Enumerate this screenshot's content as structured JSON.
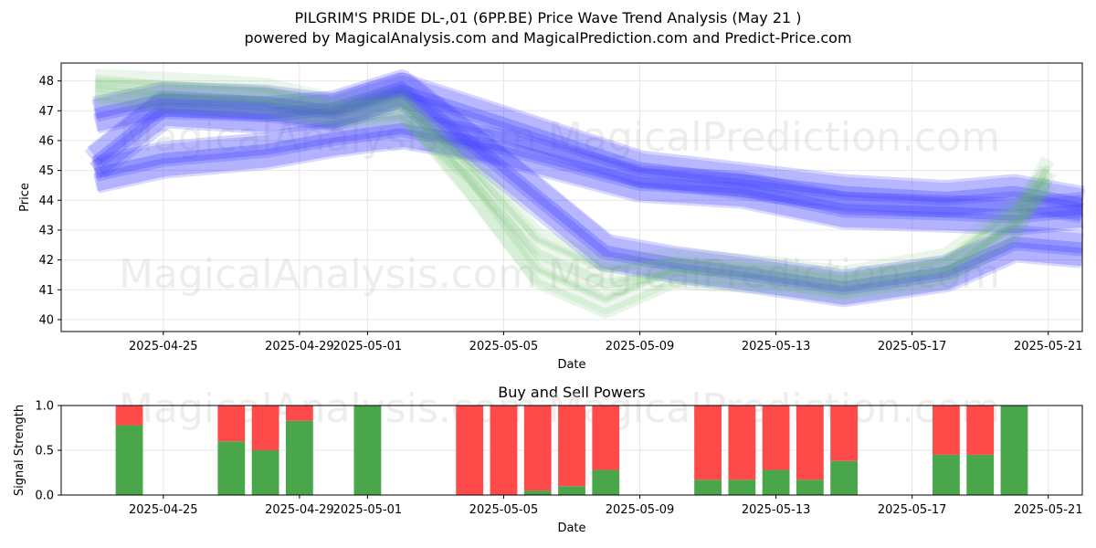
{
  "title_line1": "PILGRIM'S PRIDE  DL-,01 (6PP.BE) Price Wave Trend Analysis (May 21 )",
  "title_line2": "powered by MagicalAnalysis.com and MagicalPrediction.com and Predict-Price.com",
  "watermarks": [
    "MagicalAnalysis.com",
    "MagicalPrediction.com"
  ],
  "colors": {
    "buy": "#4aa64a",
    "sell": "#ff4a4a",
    "blue_band": "#4040ff",
    "green_band": "#5cb85c"
  },
  "chart_data": [
    {
      "type": "area",
      "xlabel": "Date",
      "ylabel": "Price",
      "x_ticks": [
        "2025-04-25",
        "2025-04-29",
        "2025-05-01",
        "2025-05-05",
        "2025-05-09",
        "2025-05-13",
        "2025-05-17",
        "2025-05-21"
      ],
      "y_ticks": [
        40,
        41,
        42,
        43,
        44,
        45,
        46,
        47,
        48
      ],
      "ylim": [
        39.6,
        48.6
      ],
      "xlim": [
        "2025-04-22",
        "2025-05-22"
      ],
      "grid": true,
      "series": [
        {
          "color": "blue",
          "x": [
            "2025-04-23",
            "2025-04-25",
            "2025-04-28",
            "2025-04-30",
            "2025-05-02",
            "2025-05-05",
            "2025-05-09",
            "2025-05-12",
            "2025-05-15",
            "2025-05-18",
            "2025-05-20",
            "2025-05-22"
          ],
          "values": [
            44.8,
            45.3,
            45.6,
            46.0,
            46.3,
            45.7,
            44.5,
            44.3,
            43.6,
            43.5,
            43.4,
            43.6
          ]
        },
        {
          "color": "blue",
          "x": [
            "2025-04-23",
            "2025-04-25",
            "2025-04-28",
            "2025-04-30",
            "2025-05-02",
            "2025-05-05",
            "2025-05-09",
            "2025-05-12",
            "2025-05-15",
            "2025-05-18",
            "2025-05-20",
            "2025-05-22"
          ],
          "values": [
            46.8,
            47.3,
            47.2,
            46.9,
            47.6,
            46.5,
            45.0,
            44.6,
            44.2,
            44.0,
            44.2,
            43.8
          ]
        },
        {
          "color": "blue",
          "x": [
            "2025-04-23",
            "2025-04-25",
            "2025-04-28",
            "2025-04-30",
            "2025-05-02",
            "2025-05-05",
            "2025-05-08",
            "2025-05-10",
            "2025-05-12",
            "2025-05-15",
            "2025-05-18",
            "2025-05-20",
            "2025-05-22"
          ],
          "values": [
            45.2,
            47.0,
            46.8,
            47.0,
            47.7,
            45.0,
            42.2,
            41.8,
            41.5,
            41.0,
            41.5,
            42.5,
            42.3
          ]
        },
        {
          "color": "green",
          "x": [
            "2025-04-23",
            "2025-04-25",
            "2025-04-28",
            "2025-04-30",
            "2025-05-02",
            "2025-05-04",
            "2025-05-06",
            "2025-05-08",
            "2025-05-10",
            "2025-05-13",
            "2025-05-15",
            "2025-05-18",
            "2025-05-20",
            "2025-05-21"
          ],
          "values": [
            47.8,
            47.7,
            47.5,
            47.0,
            47.2,
            44.5,
            41.5,
            40.5,
            41.5,
            41.3,
            41.0,
            41.5,
            43.0,
            45.0
          ]
        },
        {
          "color": "green",
          "x": [
            "2025-04-23",
            "2025-04-25",
            "2025-04-28",
            "2025-04-30",
            "2025-05-02",
            "2025-05-04",
            "2025-05-06",
            "2025-05-08",
            "2025-05-10",
            "2025-05-13",
            "2025-05-15",
            "2025-05-18",
            "2025-05-20",
            "2025-05-21"
          ],
          "values": [
            47.6,
            47.4,
            47.2,
            46.8,
            47.0,
            45.0,
            42.5,
            41.5,
            41.8,
            41.5,
            41.2,
            41.8,
            43.5,
            44.6
          ]
        }
      ]
    },
    {
      "type": "bar",
      "title": "Buy and Sell Powers",
      "xlabel": "Date",
      "ylabel": "Signal Strength",
      "x_ticks": [
        "2025-04-25",
        "2025-04-29",
        "2025-05-01",
        "2025-05-05",
        "2025-05-09",
        "2025-05-13",
        "2025-05-17",
        "2025-05-21"
      ],
      "y_ticks": [
        0.0,
        0.5,
        1.0
      ],
      "ylim": [
        0,
        1
      ],
      "xlim": [
        "2025-04-22",
        "2025-05-22"
      ],
      "categories": [
        "2025-04-24",
        "2025-04-27",
        "2025-04-28",
        "2025-04-29",
        "2025-05-01",
        "2025-05-04",
        "2025-05-05",
        "2025-05-06",
        "2025-05-07",
        "2025-05-08",
        "2025-05-11",
        "2025-05-12",
        "2025-05-13",
        "2025-05-14",
        "2025-05-15",
        "2025-05-18",
        "2025-05-19",
        "2025-05-20"
      ],
      "series": [
        {
          "name": "Buy",
          "values": [
            0.78,
            0.6,
            0.5,
            0.83,
            1.0,
            0.0,
            0.0,
            0.05,
            0.1,
            0.28,
            0.17,
            0.17,
            0.28,
            0.17,
            0.38,
            0.45,
            0.45,
            1.0
          ]
        },
        {
          "name": "Sell",
          "values": [
            0.22,
            0.4,
            0.5,
            0.17,
            0.0,
            1.0,
            1.0,
            0.95,
            0.9,
            0.72,
            0.83,
            0.83,
            0.72,
            0.83,
            0.62,
            0.55,
            0.55,
            0.0
          ]
        }
      ]
    }
  ]
}
